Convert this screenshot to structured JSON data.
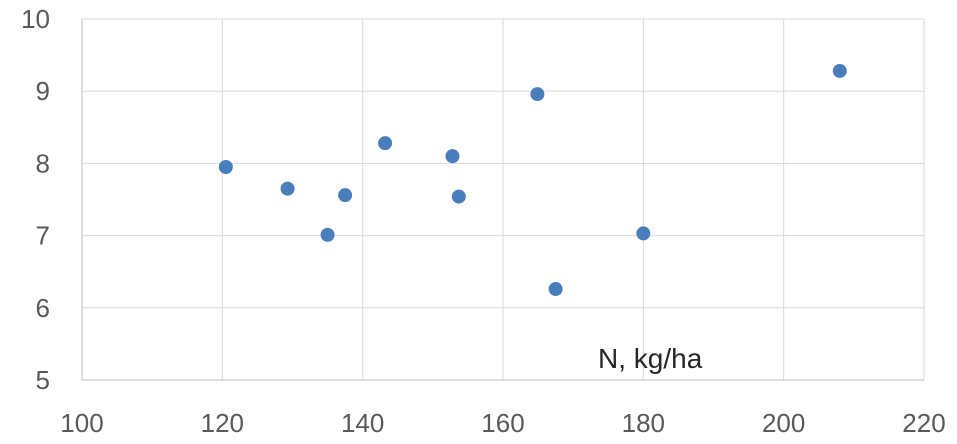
{
  "chart_data": {
    "type": "scatter",
    "title": "",
    "xlabel": "N, kg/ha",
    "ylabel": "",
    "xlim": [
      100,
      220
    ],
    "ylim": [
      5,
      10
    ],
    "x_ticks": [
      100,
      120,
      140,
      160,
      180,
      200,
      220
    ],
    "y_ticks": [
      5,
      6,
      7,
      8,
      9,
      10
    ],
    "grid": true,
    "legend": "none",
    "series": [
      {
        "color": "#4a7ebb",
        "points": [
          {
            "x": 120.5,
            "y": 7.95
          },
          {
            "x": 129.3,
            "y": 7.65
          },
          {
            "x": 135.0,
            "y": 7.01
          },
          {
            "x": 137.5,
            "y": 7.56
          },
          {
            "x": 143.2,
            "y": 8.28
          },
          {
            "x": 152.8,
            "y": 8.1
          },
          {
            "x": 153.7,
            "y": 7.54
          },
          {
            "x": 164.9,
            "y": 8.96
          },
          {
            "x": 167.5,
            "y": 6.26
          },
          {
            "x": 180.0,
            "y": 7.03
          },
          {
            "x": 208.0,
            "y": 9.28
          }
        ]
      }
    ]
  }
}
